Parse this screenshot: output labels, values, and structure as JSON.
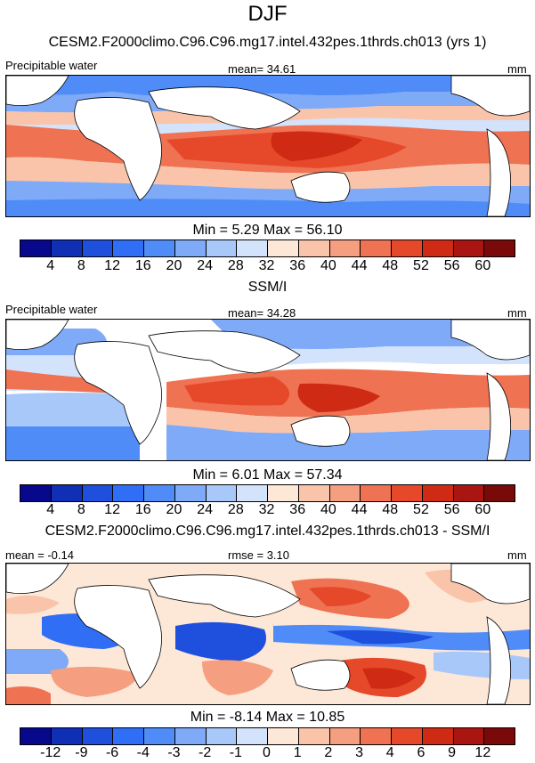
{
  "title": "DJF",
  "panels": [
    {
      "subtitle": "CESM2.F2000climo.C96.C96.mg17.intel.432pes.1thrds.ch013 (yrs 1)",
      "left_label": "Precipitable water",
      "center_label": "mean=  34.61",
      "right_label": "mm",
      "stats": "Min =   5.29 Max =  56.10",
      "ticks": [
        "4",
        "8",
        "12",
        "16",
        "20",
        "24",
        "28",
        "32",
        "36",
        "40",
        "44",
        "48",
        "52",
        "56",
        "60"
      ],
      "colors": [
        "#08088c",
        "#0f2fb5",
        "#1f4fdd",
        "#2f6ef5",
        "#4f8cf7",
        "#7eaaf8",
        "#a9c8fa",
        "#d3e3fb",
        "#fde7d6",
        "#f9c4aa",
        "#f59e80",
        "#ef7252",
        "#e6482a",
        "#cf2b14",
        "#a91510",
        "#7a0a0a"
      ]
    },
    {
      "subtitle": "SSM/I",
      "left_label": "Precipitable water",
      "center_label": "mean=  34.28",
      "right_label": "mm",
      "stats": "Min =   6.01 Max =  57.34",
      "ticks": [
        "4",
        "8",
        "12",
        "16",
        "20",
        "24",
        "28",
        "32",
        "36",
        "40",
        "44",
        "48",
        "52",
        "56",
        "60"
      ],
      "colors": [
        "#08088c",
        "#0f2fb5",
        "#1f4fdd",
        "#2f6ef5",
        "#4f8cf7",
        "#7eaaf8",
        "#a9c8fa",
        "#d3e3fb",
        "#fde7d6",
        "#f9c4aa",
        "#f59e80",
        "#ef7252",
        "#e6482a",
        "#cf2b14",
        "#a91510",
        "#7a0a0a"
      ]
    },
    {
      "subtitle": "CESM2.F2000climo.C96.C96.mg17.intel.432pes.1thrds.ch013 - SSM/I",
      "left_label": "mean =  -0.14",
      "center_label": "rmse =  3.10",
      "right_label": "mm",
      "stats": "Min =  -8.14 Max =  10.85",
      "ticks": [
        "-12",
        "-9",
        "-6",
        "-4",
        "-3",
        "-2",
        "-1",
        "0",
        "1",
        "2",
        "3",
        "4",
        "6",
        "9",
        "12"
      ],
      "colors": [
        "#08088c",
        "#0f2fb5",
        "#1f4fdd",
        "#2f6ef5",
        "#4f8cf7",
        "#7eaaf8",
        "#a9c8fa",
        "#d3e3fb",
        "#fde7d6",
        "#f9c4aa",
        "#f59e80",
        "#ef7252",
        "#e6482a",
        "#cf2b14",
        "#a91510",
        "#7a0a0a"
      ]
    }
  ]
}
